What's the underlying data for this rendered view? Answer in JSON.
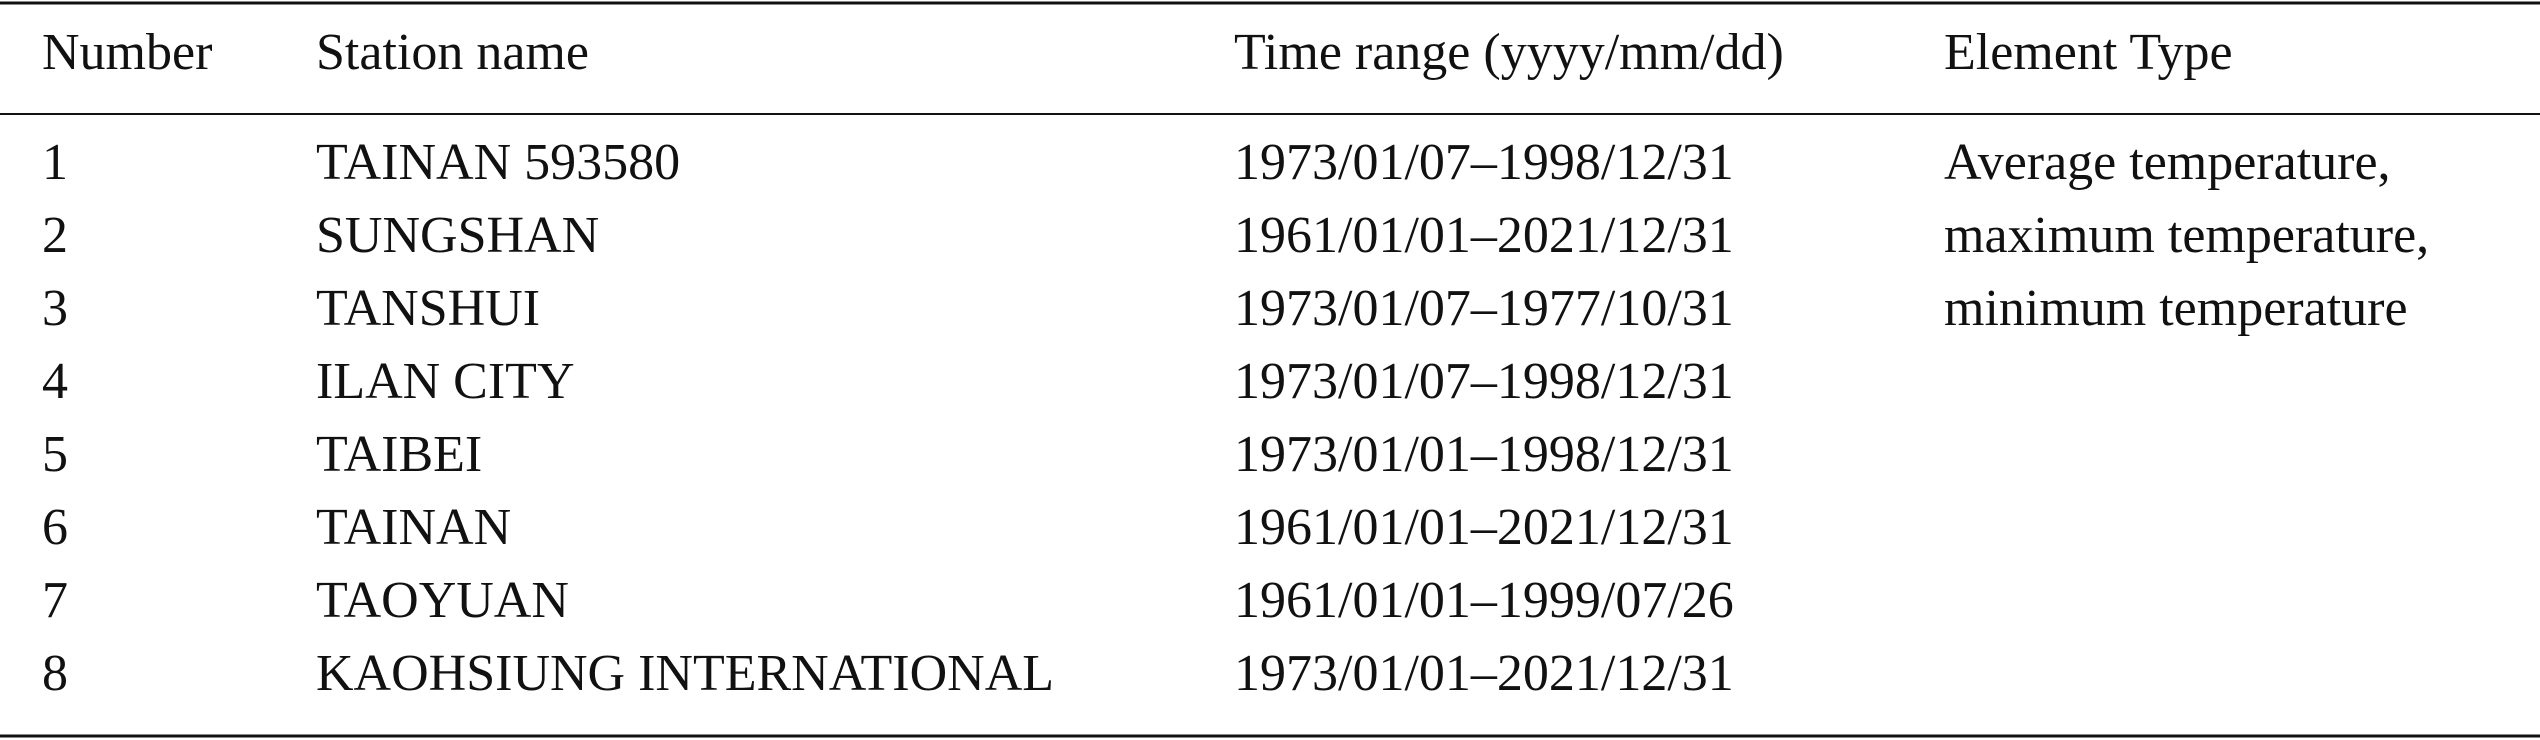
{
  "table": {
    "header": [
      "Number",
      "Station name",
      "Time range (yyyy/mm/dd)",
      "Element Type"
    ],
    "rows": [
      [
        "1",
        "TAINAN 593580",
        "1973/01/07–1998/12/31"
      ],
      [
        "2",
        "SUNGSHAN",
        "1961/01/01–2021/12/31"
      ],
      [
        "3",
        "TANSHUI",
        "1973/01/07–1977/10/31"
      ],
      [
        "4",
        "ILAN CITY",
        "1973/01/07–1998/12/31"
      ],
      [
        "5",
        "TAIBEI",
        "1973/01/01–1998/12/31"
      ],
      [
        "6",
        "TAINAN",
        "1961/01/01–2021/12/31"
      ],
      [
        "7",
        "TAOYUAN",
        "1961/01/01–1999/07/26"
      ],
      [
        "8",
        "KAOHSIUNG INTERNATIONAL",
        "1973/01/01–2021/12/31"
      ]
    ],
    "element_type": [
      "Average temperature,",
      "maximum temperature,",
      "minimum temperature"
    ]
  }
}
